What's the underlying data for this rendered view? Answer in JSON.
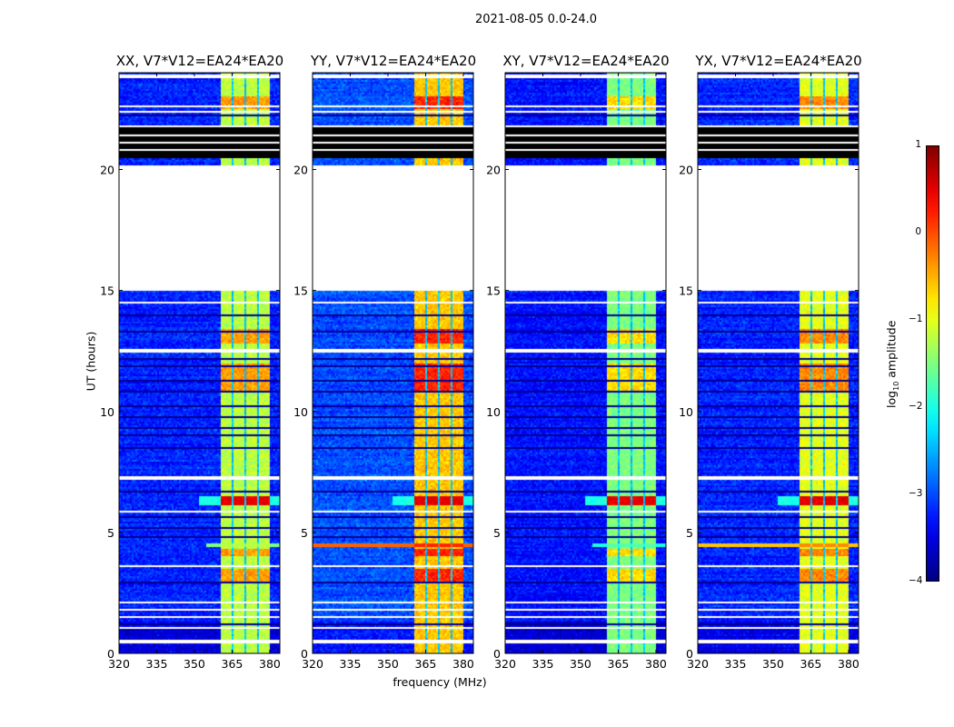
{
  "figure": {
    "suptitle": "2021-08-05 0.0-24.0",
    "ylabel": "UT (hours)",
    "xlabel": "frequency (MHz)"
  },
  "colorbar": {
    "label_main": "log",
    "label_sub": "10",
    "label_rest": " amplitude",
    "ticks": [
      "1",
      "0",
      "−1",
      "−2",
      "−3",
      "−4"
    ],
    "range": [
      -4,
      1
    ],
    "colormap": "jet"
  },
  "chart_data": {
    "type": "heatmap",
    "xlim": [
      320,
      384
    ],
    "ylim": [
      0,
      24
    ],
    "xticks": [
      320,
      335,
      350,
      365,
      380
    ],
    "xtick_labels": [
      "320",
      "335",
      "350",
      "365",
      "380"
    ],
    "yticks": [
      0,
      5,
      10,
      15,
      20
    ],
    "ytick_labels": [
      "0",
      "5",
      "10",
      "15",
      "20"
    ],
    "value_range": [
      -4,
      1
    ],
    "flagged_time_ranges_hours": [
      [
        15.0,
        20.0
      ],
      [
        20.0,
        20.15
      ],
      [
        12.4,
        12.6
      ],
      [
        7.15,
        7.3
      ],
      [
        0.45,
        0.55
      ],
      [
        1.05,
        1.12
      ],
      [
        1.45,
        1.52
      ],
      [
        1.75,
        1.82
      ],
      [
        2.1,
        2.17
      ],
      [
        3.6,
        3.67
      ],
      [
        5.85,
        5.92
      ],
      [
        14.45,
        14.55
      ],
      [
        14.8,
        14.85
      ],
      [
        22.35,
        22.45
      ],
      [
        22.6,
        22.68
      ],
      [
        23.0,
        23.05
      ],
      [
        23.8,
        23.95
      ],
      [
        20.45,
        20.5
      ],
      [
        20.8,
        20.87
      ],
      [
        21.1,
        21.17
      ],
      [
        21.4,
        21.47
      ],
      [
        21.75,
        21.85
      ]
    ],
    "zero_time_ranges_hours": [
      [
        20.5,
        21.75
      ]
    ],
    "dark_time_lines_hours": [
      1.2,
      2.9,
      4.8,
      5.2,
      5.6,
      6.7,
      8.5,
      9.0,
      9.3,
      9.8,
      10.2,
      10.8,
      11.3,
      11.9,
      12.2,
      13.3,
      14.0,
      22.2
    ],
    "rfi_band_mhz": [
      360.5,
      380
    ],
    "rfi_band_gaps_mhz": [
      365.2,
      370.3,
      375.3
    ],
    "panels": [
      {
        "title": "XX, V7*V12=EA24*EA20",
        "background": -3.2,
        "band": -1.2,
        "hot": -0.4,
        "rfi_4_5h": -1.5,
        "rfi_full_width": false
      },
      {
        "title": "YY, V7*V12=EA24*EA20",
        "background": -3.0,
        "band": -0.6,
        "hot": 0.2,
        "rfi_4_5h": -0.1,
        "rfi_full_width": true
      },
      {
        "title": "XY, V7*V12=EA24*EA20",
        "background": -3.3,
        "band": -1.5,
        "hot": -0.7,
        "rfi_4_5h": -2.0,
        "rfi_full_width": false
      },
      {
        "title": "YX, V7*V12=EA24*EA20",
        "background": -3.2,
        "band": -1.0,
        "hot": -0.3,
        "rfi_4_5h": -0.6,
        "rfi_full_width": true
      }
    ]
  }
}
